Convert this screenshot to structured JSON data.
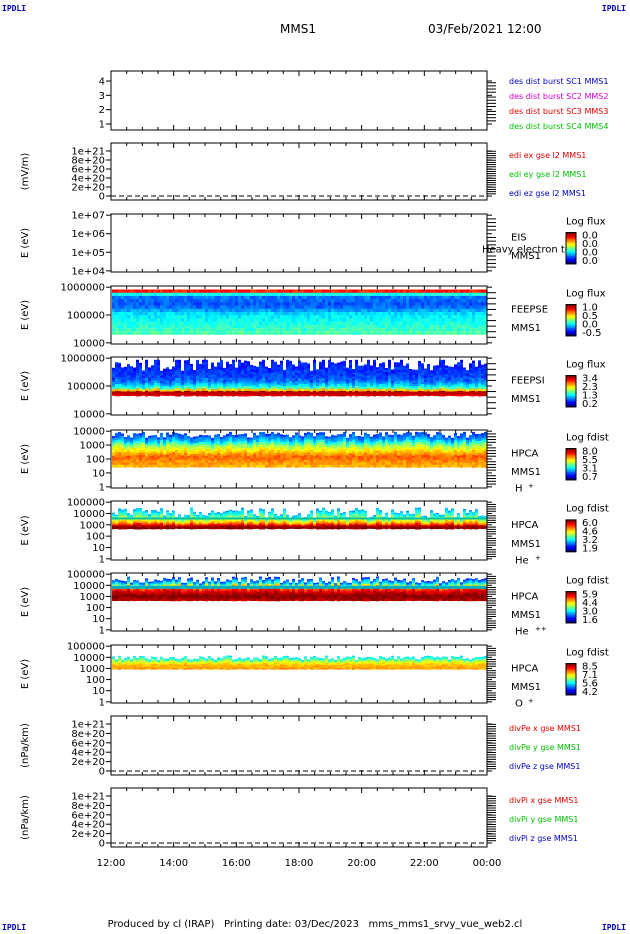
{
  "corners": "IPDLI",
  "header": {
    "spacecraft": "MMS1",
    "date": "03/Feb/2021 12:00"
  },
  "footer": "Produced by cl (IRAP)   Printing date: 03/Dec/2023   mms_mms1_srvy_vue_web2.cl",
  "time_axis": {
    "ticks": [
      "12:00",
      "14:00",
      "16:00",
      "18:00",
      "20:00",
      "22:00",
      "00:00"
    ]
  },
  "colors": {
    "mms1": "#0000c0",
    "mms2": "#d000d0",
    "mms3": "#e00000",
    "mms4": "#00c000"
  },
  "chart_data": [
    {
      "id": "p1",
      "type": "line",
      "ylabel": "",
      "yticks": [
        "1",
        "2",
        "3",
        "4"
      ],
      "legend": [
        {
          "text": "des dist burst SC1 MMS1",
          "color": "#0000c0"
        },
        {
          "text": "des dist burst SC2 MMS2",
          "color": "#d000d0"
        },
        {
          "text": "des dist burst SC3 MMS3",
          "color": "#e00000"
        },
        {
          "text": "des dist burst SC4 MMS4",
          "color": "#00c000"
        }
      ],
      "series": []
    },
    {
      "id": "p2",
      "type": "line",
      "ylabel": "(mV/m)",
      "yticks": [
        "0",
        "2e+20",
        "4e+20",
        "6e+20",
        "8e+20",
        "1e+21"
      ],
      "zero_line": true,
      "legend": [
        {
          "text": "edi ex gse l2 MMS1",
          "color": "#e00000"
        },
        {
          "text": "edi ey gse l2 MMS1",
          "color": "#00c000"
        },
        {
          "text": "edi ez gse l2 MMS1",
          "color": "#0000c0"
        }
      ],
      "series": []
    },
    {
      "id": "p3",
      "type": "heatmap",
      "ylabel": "E (eV)",
      "yticks": [
        "1e+04",
        "1e+05",
        "1e+06",
        "1e+07"
      ],
      "instrument": "EIS",
      "craft": "MMS1",
      "species": "",
      "overlay": "Heavy electron tof",
      "colorbar": {
        "label": "Log flux",
        "ticks": [
          "0.0",
          "0.0",
          "0.0",
          "0.0"
        ]
      }
    },
    {
      "id": "p4",
      "type": "heatmap",
      "ylabel": "E (eV)",
      "yticks": [
        "10000",
        "100000",
        "1000000"
      ],
      "instrument": "FEEPSE",
      "craft": "MMS1",
      "species": "",
      "colorbar": {
        "label": "Log flux",
        "ticks": [
          "1.0",
          "0.5",
          "0.0",
          "-0.5"
        ]
      }
    },
    {
      "id": "p5",
      "type": "heatmap",
      "ylabel": "E (eV)",
      "yticks": [
        "10000",
        "100000",
        "1000000"
      ],
      "instrument": "FEEPSI",
      "craft": "MMS1",
      "species": "",
      "colorbar": {
        "label": "Log flux",
        "ticks": [
          "3.4",
          "2.3",
          "1.3",
          "0.2"
        ]
      }
    },
    {
      "id": "p6",
      "type": "heatmap",
      "ylabel": "E (eV)",
      "yticks": [
        "1",
        "10",
        "100",
        "1000",
        "10000"
      ],
      "instrument": "HPCA",
      "craft": "MMS1",
      "species": "H",
      "species_sup": "+",
      "colorbar": {
        "label": "Log fdist",
        "ticks": [
          "8.0",
          "5.5",
          "3.1",
          "0.7"
        ]
      }
    },
    {
      "id": "p7",
      "type": "heatmap",
      "ylabel": "E (eV)",
      "yticks": [
        "1",
        "10",
        "100",
        "1000",
        "10000",
        "100000"
      ],
      "instrument": "HPCA",
      "craft": "MMS1",
      "species": "He",
      "species_sup": "+",
      "colorbar": {
        "label": "Log fdist",
        "ticks": [
          "6.0",
          "4.6",
          "3.2",
          "1.9"
        ]
      }
    },
    {
      "id": "p8",
      "type": "heatmap",
      "ylabel": "E (eV)",
      "yticks": [
        "1",
        "10",
        "100",
        "1000",
        "10000",
        "100000"
      ],
      "instrument": "HPCA",
      "craft": "MMS1",
      "species": "He",
      "species_sup": "++",
      "colorbar": {
        "label": "Log fdist",
        "ticks": [
          "5.9",
          "4.4",
          "3.0",
          "1.6"
        ]
      }
    },
    {
      "id": "p9",
      "type": "heatmap",
      "ylabel": "E (eV)",
      "yticks": [
        "1",
        "10",
        "100",
        "1000",
        "10000",
        "100000"
      ],
      "instrument": "HPCA",
      "craft": "MMS1",
      "species": "O",
      "species_sup": "+",
      "colorbar": {
        "label": "Log fdist",
        "ticks": [
          "8.5",
          "7.1",
          "5.6",
          "4.2"
        ]
      }
    },
    {
      "id": "p10",
      "type": "line",
      "ylabel": "(nPa/km)",
      "yticks": [
        "0",
        "2e+20",
        "4e+20",
        "6e+20",
        "8e+20",
        "1e+21"
      ],
      "zero_line": true,
      "legend": [
        {
          "text": "divPe x gse MMS1",
          "color": "#e00000"
        },
        {
          "text": "divPe y gse MMS1",
          "color": "#00c000"
        },
        {
          "text": "divPe z gse MMS1",
          "color": "#0000c0"
        }
      ],
      "series": []
    },
    {
      "id": "p11",
      "type": "line",
      "ylabel": "(nPa/km)",
      "yticks": [
        "0",
        "2e+20",
        "4e+20",
        "6e+20",
        "8e+20",
        "1e+21"
      ],
      "zero_line": true,
      "legend": [
        {
          "text": "divPi x gse MMS1",
          "color": "#e00000"
        },
        {
          "text": "divPi y gse MMS1",
          "color": "#00c000"
        },
        {
          "text": "divPi z gse MMS1",
          "color": "#0000c0"
        }
      ],
      "series": []
    }
  ]
}
